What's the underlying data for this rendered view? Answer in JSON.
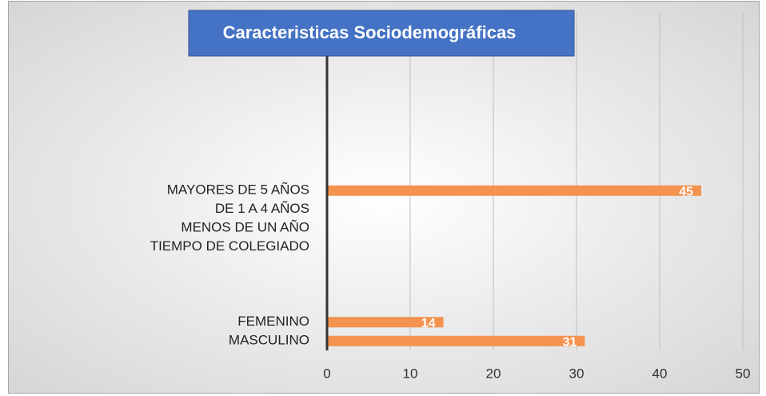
{
  "chart_data": {
    "type": "hbar",
    "title": "Caracteristicas Sociodemográficas",
    "categories": [
      "MASCULINO",
      "FEMENINO",
      null,
      null,
      null,
      "TIEMPO DE COLEGIADO",
      "MENOS DE UN AÑO",
      "DE 1 A 4 AÑOS",
      "MAYORES DE 5 AÑOS",
      null,
      null,
      null,
      null,
      null,
      null,
      null,
      null,
      null
    ],
    "values": [
      31,
      14,
      null,
      null,
      null,
      null,
      null,
      null,
      45,
      null,
      null,
      null,
      null,
      null,
      null,
      null,
      null,
      null
    ],
    "color": "#f4924f",
    "xlim": [
      0,
      50
    ],
    "xticks": [
      0,
      10,
      20,
      30,
      40,
      50
    ],
    "grid": true
  }
}
